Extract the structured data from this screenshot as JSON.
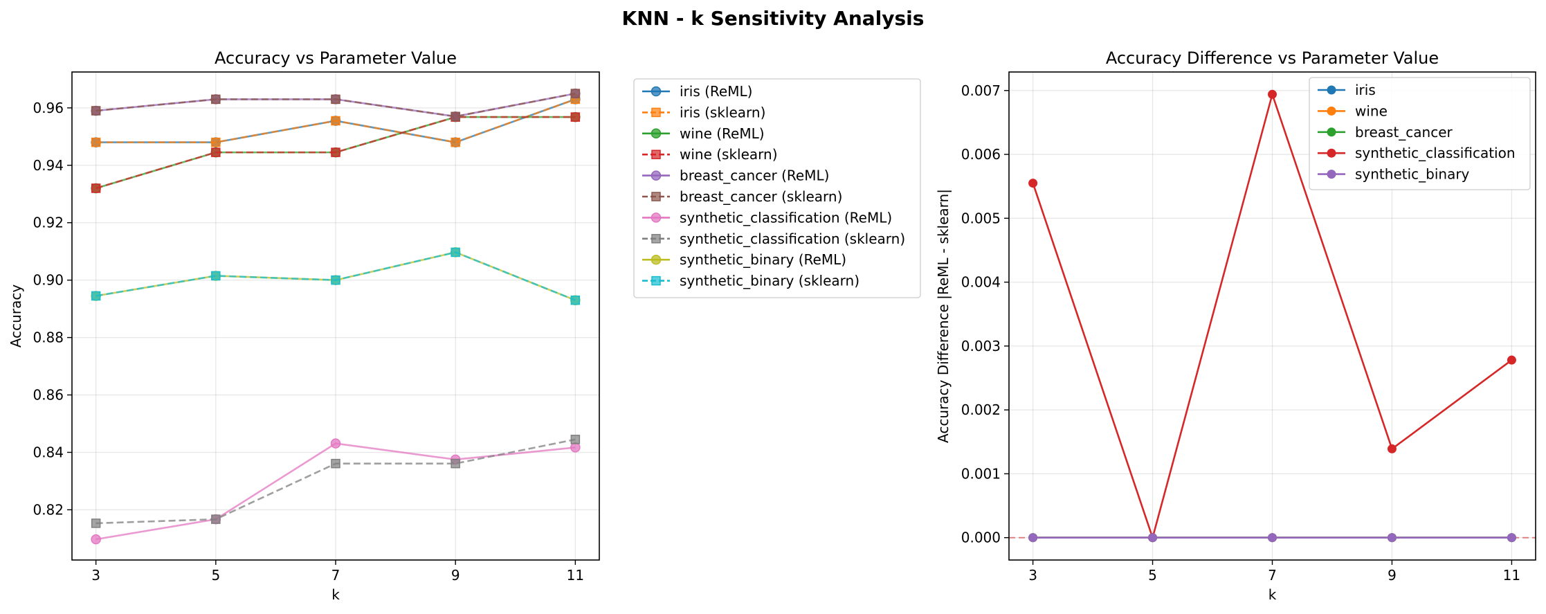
{
  "figure": {
    "suptitle": "KNN - k Sensitivity Analysis"
  },
  "chart_data": [
    {
      "type": "line",
      "title": "Accuracy vs Parameter Value",
      "xlabel": "k",
      "ylabel": "Accuracy",
      "x": [
        3,
        5,
        7,
        9,
        11
      ],
      "xticks": [
        "3",
        "5",
        "7",
        "9",
        "11"
      ],
      "ylim": [
        0.8025,
        0.9725
      ],
      "yticks": [
        0.82,
        0.84,
        0.86,
        0.88,
        0.9,
        0.92,
        0.94,
        0.96
      ],
      "ytick_labels": [
        "0.82",
        "0.84",
        "0.86",
        "0.88",
        "0.90",
        "0.92",
        "0.94",
        "0.96"
      ],
      "grid": true,
      "legend_position": "outside right",
      "series": [
        {
          "name": "iris (ReML)",
          "color": "#1f77b4",
          "dash": "solid",
          "marker": "circle",
          "values": [
            0.948,
            0.948,
            0.9555,
            0.948,
            0.963
          ]
        },
        {
          "name": "iris (sklearn)",
          "color": "#ff7f0e",
          "dash": "dashed",
          "marker": "square",
          "values": [
            0.948,
            0.948,
            0.9555,
            0.948,
            0.963
          ]
        },
        {
          "name": "wine (ReML)",
          "color": "#2ca02c",
          "dash": "solid",
          "marker": "circle",
          "values": [
            0.932,
            0.9445,
            0.9445,
            0.9568,
            0.9568
          ]
        },
        {
          "name": "wine (sklearn)",
          "color": "#d62728",
          "dash": "dashed",
          "marker": "square",
          "values": [
            0.932,
            0.9445,
            0.9445,
            0.9568,
            0.9568
          ]
        },
        {
          "name": "breast_cancer (ReML)",
          "color": "#9467bd",
          "dash": "solid",
          "marker": "circle",
          "values": [
            0.959,
            0.963,
            0.963,
            0.957,
            0.965
          ]
        },
        {
          "name": "breast_cancer (sklearn)",
          "color": "#8c564b",
          "dash": "dashed",
          "marker": "square",
          "values": [
            0.959,
            0.963,
            0.963,
            0.957,
            0.965
          ]
        },
        {
          "name": "synthetic_classification (ReML)",
          "color": "#e377c2",
          "dash": "solid",
          "marker": "circle",
          "values": [
            0.8097,
            0.8167,
            0.8431,
            0.8375,
            0.8417
          ]
        },
        {
          "name": "synthetic_classification (sklearn)",
          "color": "#7f7f7f",
          "dash": "dashed",
          "marker": "square",
          "values": [
            0.8153,
            0.8167,
            0.8361,
            0.8361,
            0.8445
          ]
        },
        {
          "name": "synthetic_binary (ReML)",
          "color": "#bcbd22",
          "dash": "solid",
          "marker": "circle",
          "values": [
            0.8945,
            0.9015,
            0.9,
            0.9097,
            0.893
          ]
        },
        {
          "name": "synthetic_binary (sklearn)",
          "color": "#17becf",
          "dash": "dashed",
          "marker": "square",
          "values": [
            0.8945,
            0.9015,
            0.9,
            0.9097,
            0.893
          ]
        }
      ]
    },
    {
      "type": "line",
      "title": "Accuracy Difference vs Parameter Value",
      "xlabel": "k",
      "ylabel": "Accuracy Difference |ReML - sklearn|",
      "x": [
        3,
        5,
        7,
        9,
        11
      ],
      "xticks": [
        "3",
        "5",
        "7",
        "9",
        "11"
      ],
      "ylim": [
        -0.00035,
        0.00729
      ],
      "yticks": [
        0.0,
        0.001,
        0.002,
        0.003,
        0.004,
        0.005,
        0.006,
        0.007
      ],
      "ytick_labels": [
        "0.000",
        "0.001",
        "0.002",
        "0.003",
        "0.004",
        "0.005",
        "0.006",
        "0.007"
      ],
      "grid": true,
      "legend_position": "upper right",
      "reference_line": {
        "y": 0,
        "color": "#d62728",
        "dash": "dashed"
      },
      "series": [
        {
          "name": "iris",
          "color": "#1f77b4",
          "values": [
            0,
            0,
            0,
            0,
            0
          ]
        },
        {
          "name": "wine",
          "color": "#ff7f0e",
          "values": [
            0,
            0,
            0,
            0,
            0
          ]
        },
        {
          "name": "breast_cancer",
          "color": "#2ca02c",
          "values": [
            0,
            0,
            0,
            0,
            0
          ]
        },
        {
          "name": "synthetic_classification",
          "color": "#d62728",
          "values": [
            0.00555,
            0,
            0.00694,
            0.00139,
            0.00278
          ]
        },
        {
          "name": "synthetic_binary",
          "color": "#9467bd",
          "values": [
            0,
            0,
            0,
            0,
            0
          ]
        }
      ]
    }
  ]
}
